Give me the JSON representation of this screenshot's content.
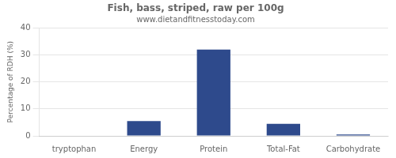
{
  "chart_data": {
    "type": "bar",
    "title": "Fish, bass, striped, raw per 100g",
    "subtitle": "www.dietandfitnesstoday.com",
    "categories": [
      "tryptophan",
      "Energy",
      "Protein",
      "Total-Fat",
      "Carbohydrate"
    ],
    "values": [
      0,
      5.5,
      32,
      4.5,
      0.5
    ],
    "color": "#2e4a8c",
    "ylabel": "Percentage of RDH (%)",
    "ylim": [
      0,
      40
    ],
    "yticks": [
      0,
      10,
      20,
      30,
      40
    ],
    "grid": true
  }
}
